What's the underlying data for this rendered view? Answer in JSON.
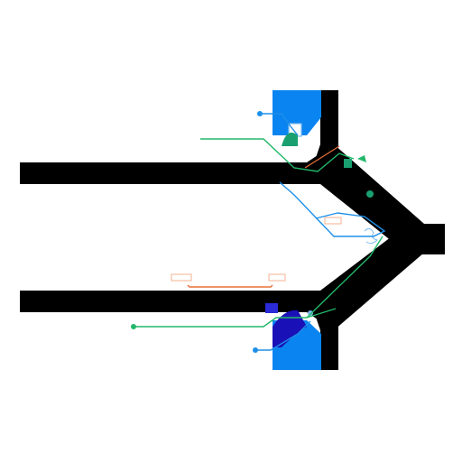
{
  "title": "",
  "colors": {
    "background": "#ffffff",
    "track": "#000000",
    "blue_block": "#0a84f0",
    "dark_blue": "#1a10b8",
    "green_line": "#22b86a",
    "blue_line": "#1e8fe8",
    "orange_line": "#e8703a",
    "teal_marker": "#1aa070",
    "light_blue_marker": "#7ab8f0",
    "light_orange_marker": "#f4b090",
    "indigo_marker": "#2b2bd9"
  },
  "icons": {
    "connector_dot": "small-circle",
    "arrow_head": "triangle-arrow"
  },
  "labels": []
}
